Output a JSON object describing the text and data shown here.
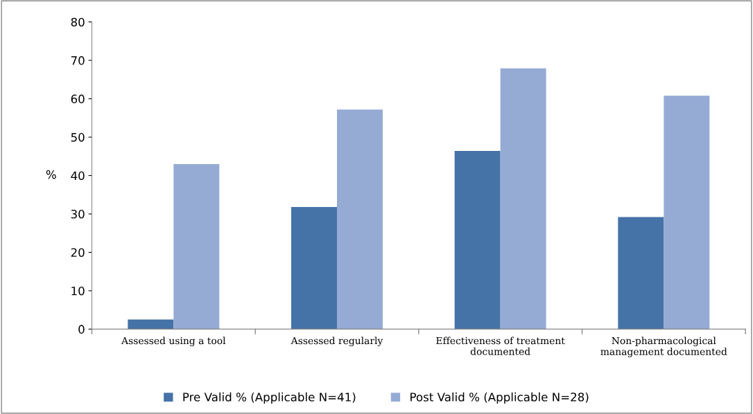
{
  "chart_data": {
    "type": "bar",
    "ylabel": "%",
    "categories": [
      "Assessed using a tool",
      "Assessed regularly",
      "Effectiveness of treatment\ndocumented",
      "Non-pharmacological\nmanagement documented"
    ],
    "series": [
      {
        "name": "Pre Valid % (Applicable N=41)",
        "color": "#4572a7",
        "values": [
          2.5,
          31.8,
          46.4,
          29.2
        ]
      },
      {
        "name": "Post Valid % (Applicable N=28)",
        "color": "#95abd4",
        "values": [
          43.0,
          57.2,
          67.9,
          60.8
        ]
      }
    ],
    "ylim": [
      0,
      80
    ],
    "yticks": [
      0,
      10,
      20,
      30,
      40,
      50,
      60,
      70,
      80
    ],
    "grid": false,
    "legend": "bottom"
  }
}
